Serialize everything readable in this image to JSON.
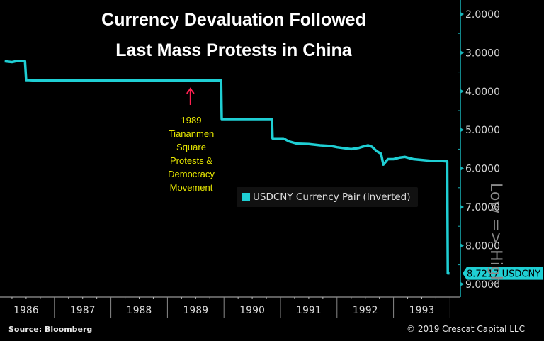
{
  "chart_data": {
    "type": "line",
    "title": "Currency Devaluation Followed Last Mass Protests in China",
    "title_lines": [
      "Currency Devaluation Followed",
      "Last Mass Protests in China"
    ],
    "xlabel": "",
    "ylabel": "Low => High",
    "y_inverted": true,
    "ylim": [
      1.8,
      9.35
    ],
    "xlim": [
      1986.0,
      1994.0
    ],
    "y_ticks": [
      "2.0000",
      "3.0000",
      "4.0000",
      "5.0000",
      "6.0000",
      "7.0000",
      "8.0000",
      "9.0000"
    ],
    "y_tick_values": [
      2,
      3,
      4,
      5,
      6,
      7,
      8,
      9
    ],
    "x_ticks": [
      "1986",
      "1987",
      "1988",
      "1989",
      "1990",
      "1991",
      "1992",
      "1993"
    ],
    "x_tick_values": [
      1986,
      1987,
      1988,
      1989,
      1990,
      1991,
      1992,
      1993
    ],
    "legend": {
      "position": "center-right",
      "entries": [
        "USDCNY Currency Pair (Inverted)"
      ]
    },
    "grid": false,
    "series": [
      {
        "name": "USDCNY Currency Pair (Inverted)",
        "color": "#1fcfd4",
        "x": [
          1986.12,
          1986.25,
          1986.35,
          1986.48,
          1986.5,
          1986.55,
          1986.7,
          1987.0,
          1988.0,
          1989.0,
          1989.95,
          1989.96,
          1990.85,
          1990.86,
          1991.05,
          1991.15,
          1991.3,
          1991.5,
          1991.7,
          1991.9,
          1992.0,
          1992.15,
          1992.25,
          1992.38,
          1992.45,
          1992.55,
          1992.62,
          1992.7,
          1992.78,
          1992.82,
          1992.9,
          1993.0,
          1993.1,
          1993.2,
          1993.35,
          1993.5,
          1993.65,
          1993.8,
          1993.95,
          1993.96,
          1993.99
        ],
        "y": [
          3.22,
          3.24,
          3.21,
          3.22,
          3.71,
          3.71,
          3.72,
          3.72,
          3.72,
          3.72,
          3.72,
          4.72,
          4.72,
          5.22,
          5.22,
          5.3,
          5.36,
          5.37,
          5.4,
          5.42,
          5.45,
          5.48,
          5.5,
          5.47,
          5.44,
          5.4,
          5.44,
          5.55,
          5.62,
          5.9,
          5.76,
          5.76,
          5.72,
          5.7,
          5.76,
          5.78,
          5.8,
          5.8,
          5.82,
          8.72,
          8.72
        ]
      }
    ],
    "last_value_label": "8.7217 USDCNY",
    "annotations": [
      {
        "text_lines": [
          "1989",
          "Tiananmen",
          "Square",
          "Protests &",
          "Democracy",
          "Movement"
        ],
        "x": 1989.4,
        "arrow": "up",
        "arrow_color": "#ff2050",
        "text_color": "#e6e600"
      }
    ]
  },
  "footer": {
    "source": "Source:  Bloomberg",
    "copyright": "© 2019 Crescat Capital LLC"
  },
  "colors": {
    "background": "#000000",
    "line": "#1fcfd4",
    "axis": "#19b3b8",
    "annotation": "#e6e600",
    "arrow": "#ff2050"
  }
}
